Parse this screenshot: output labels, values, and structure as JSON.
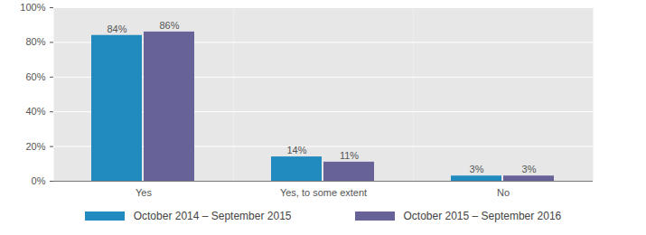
{
  "chart_data": {
    "type": "bar",
    "categories": [
      "Yes",
      "Yes, to some extent",
      "No"
    ],
    "series": [
      {
        "name": "October 2014 – September 2015",
        "color": "#218bbf",
        "values": [
          84,
          14,
          3
        ],
        "value_labels": [
          "84%",
          "14%",
          "3%"
        ]
      },
      {
        "name": "October 2015 – September 2016",
        "color": "#676297",
        "values": [
          86,
          11,
          3
        ],
        "value_labels": [
          "86%",
          "11%",
          "3%"
        ]
      }
    ],
    "ylim": [
      0,
      100
    ],
    "yticks": [
      {
        "value": 0,
        "label": "0%"
      },
      {
        "value": 20,
        "label": "20%"
      },
      {
        "value": 40,
        "label": "40%"
      },
      {
        "value": 60,
        "label": "60%"
      },
      {
        "value": 80,
        "label": "80%"
      },
      {
        "value": 100,
        "label": "100%"
      }
    ],
    "grid": true,
    "legend": "bottom",
    "data_labels": true
  }
}
